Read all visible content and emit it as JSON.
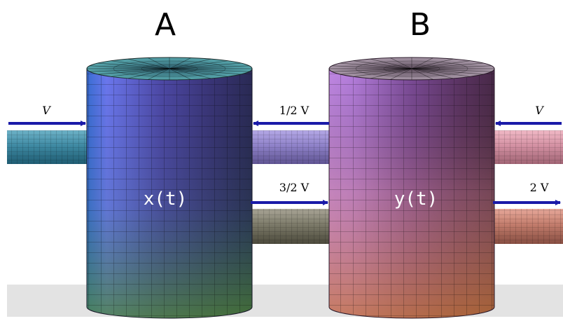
{
  "tank_a": {
    "title": "A",
    "label": "x(t)"
  },
  "tank_b": {
    "title": "B",
    "label": "y(t)"
  },
  "flows": {
    "inflow_a": "V",
    "b_to_a": "1/2 V",
    "a_to_b": "3/2 V",
    "inflow_b": "V",
    "outflow_b": "2 V"
  },
  "colors": {
    "arrow": "#1a1aa8",
    "ground": "#e3e3e3"
  }
}
